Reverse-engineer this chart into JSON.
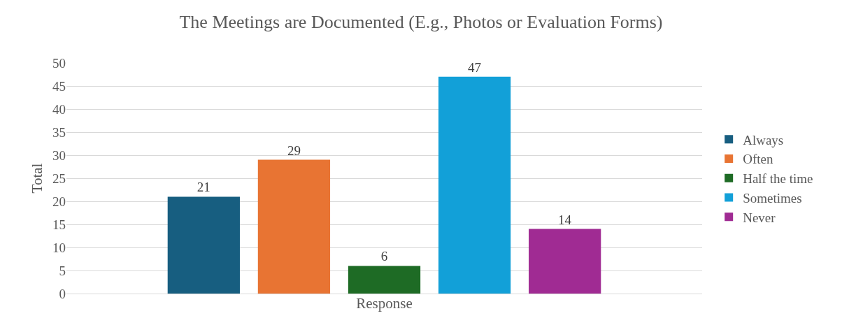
{
  "chart_data": {
    "type": "bar",
    "title": "The Meetings are Documented (E.g., Photos or Evaluation Forms)",
    "xlabel": "Response",
    "ylabel": "Total",
    "categories": [
      null
    ],
    "series": [
      {
        "name": "Always",
        "color": "#175e80",
        "values": [
          21
        ]
      },
      {
        "name": "Often",
        "color": "#e87433",
        "values": [
          29
        ]
      },
      {
        "name": "Half the time",
        "color": "#1e6b25",
        "values": [
          6
        ]
      },
      {
        "name": "Sometimes",
        "color": "#12a0d8",
        "values": [
          47
        ]
      },
      {
        "name": "Never",
        "color": "#a02b93",
        "values": [
          14
        ]
      }
    ],
    "ylim": [
      0,
      50
    ],
    "yticks": [
      0,
      5,
      10,
      15,
      20,
      25,
      30,
      35,
      40,
      45,
      50
    ],
    "grid": "y",
    "legend": "right",
    "data_labels": true,
    "tick_labels": "y"
  }
}
